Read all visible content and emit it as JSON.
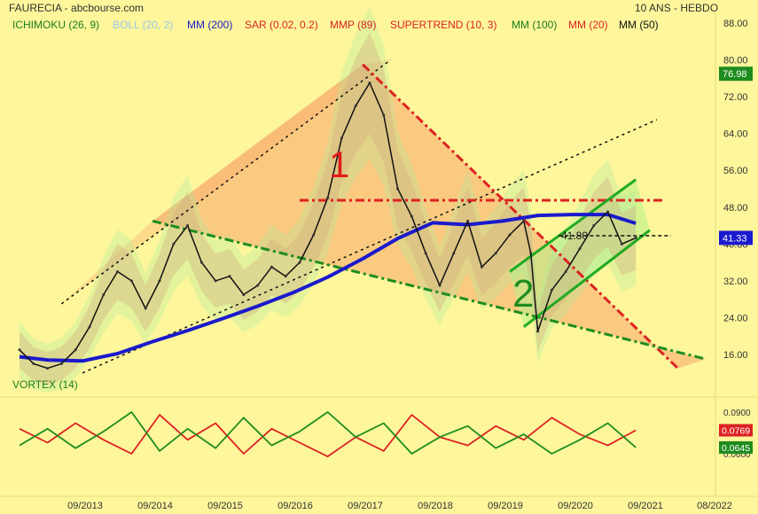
{
  "header": {
    "title": "FAURECIA - abcbourse.com",
    "period": "10 ANS - HEBDO"
  },
  "indicators": [
    {
      "label": "ICHIMOKU (26, 9)",
      "color": "#1e7a1e"
    },
    {
      "label": "BOLL (20, 2)",
      "color": "#9cc5ea"
    },
    {
      "label": "MM (200)",
      "color": "#1a1acc"
    },
    {
      "label": "SAR (0.02, 0.2)",
      "color": "#dd2222"
    },
    {
      "label": "MMP (89)",
      "color": "#dd2222"
    },
    {
      "label": "SUPERTREND (10, 3)",
      "color": "#dd2222"
    },
    {
      "label": "MM (100)",
      "color": "#1e7a1e"
    },
    {
      "label": "MM (20)",
      "color": "#dd2222"
    },
    {
      "label": "MM (50)",
      "color": "#111111"
    }
  ],
  "annotations": {
    "wave1": "1",
    "wave2": "2",
    "level": "41.80"
  },
  "chart_data": [
    {
      "type": "line",
      "title": "",
      "y_axis": {
        "ticks": [
          "88.00",
          "80.00",
          "72.00",
          "64.00",
          "56.00",
          "48.00",
          "40.00",
          "32.00",
          "24.00",
          "16.00"
        ],
        "tick_values": [
          88,
          80,
          72,
          64,
          56,
          48,
          40,
          32,
          24,
          16
        ],
        "range": [
          11,
          90
        ]
      },
      "x_axis": {
        "ticks": [
          "09/2013",
          "09/2014",
          "09/2015",
          "09/2016",
          "09/2017",
          "09/2018",
          "09/2019",
          "09/2020",
          "09/2021",
          "08/2022"
        ]
      },
      "price_badges": [
        {
          "label": "76.98",
          "value": 76.98,
          "color": "#1e8c1e"
        },
        {
          "label": "41.33",
          "value": 41.33,
          "color": "#1a1ad0"
        }
      ],
      "series": [
        {
          "name": "MM (200)",
          "color": "#1a1acc",
          "x": [
            2012.6,
            2013.0,
            2013.5,
            2014.0,
            2014.5,
            2015.0,
            2015.5,
            2016.0,
            2016.5,
            2017.0,
            2017.5,
            2018.0,
            2018.5,
            2019.0,
            2019.5,
            2020.0,
            2020.5,
            2021.0,
            2021.4
          ],
          "values": [
            15.5,
            14.8,
            14.6,
            16.2,
            18.8,
            21.2,
            23.8,
            26.5,
            29.4,
            32.8,
            36.8,
            41.2,
            44.6,
            44.2,
            45.0,
            46.2,
            46.4,
            46.4,
            44.5
          ]
        },
        {
          "name": "",
          "color": "#111111",
          "x": [
            2012.6,
            2012.8,
            2013.0,
            2013.2,
            2013.4,
            2013.6,
            2013.8,
            2014.0,
            2014.2,
            2014.4,
            2014.6,
            2014.8,
            2015.0,
            2015.2,
            2015.4,
            2015.6,
            2015.8,
            2016.0,
            2016.2,
            2016.4,
            2016.6,
            2016.8,
            2017.0,
            2017.2,
            2017.4,
            2017.6,
            2017.8,
            2018.0,
            2018.2,
            2018.4,
            2018.6,
            2018.8,
            2019.0,
            2019.2,
            2019.4,
            2019.6,
            2019.8,
            2019.9,
            2020.0,
            2020.2,
            2020.4,
            2020.6,
            2020.8,
            2021.0,
            2021.2,
            2021.4
          ],
          "values": [
            17.0,
            14.0,
            13.0,
            14.0,
            17.0,
            22.0,
            29.0,
            34.0,
            32.0,
            26.0,
            32.0,
            40.0,
            44.0,
            36.0,
            32.0,
            33.0,
            29.0,
            31.0,
            35.0,
            33.0,
            36.0,
            42.0,
            50.0,
            63.0,
            70.0,
            75.0,
            68.0,
            52.0,
            46.0,
            38.0,
            31.0,
            38.0,
            45.0,
            35.0,
            38.0,
            42.0,
            45.0,
            38.0,
            21.0,
            30.0,
            34.0,
            39.0,
            44.0,
            47.0,
            40.0,
            41.33
          ]
        }
      ],
      "annotation_lines": [
        {
          "name": "upper-trendline-1",
          "style": "dotted",
          "color": "#111111",
          "x": [
            2013.2,
            2017.9
          ],
          "values": [
            27,
            80
          ]
        },
        {
          "name": "lower-trendline-1",
          "style": "dotted",
          "color": "#111111",
          "x": [
            2013.5,
            2021.7
          ],
          "values": [
            12,
            67
          ]
        },
        {
          "name": "downtrend-line",
          "style": "dash-dot",
          "color": "#dd2222",
          "x": [
            2017.5,
            2022.0
          ],
          "values": [
            79,
            13
          ]
        },
        {
          "name": "resistance-line",
          "style": "dash-dot",
          "color": "#dd2222",
          "x": [
            2016.6,
            2021.8
          ],
          "values": [
            49.5,
            49.5
          ]
        },
        {
          "name": "support-line",
          "style": "dash-dot",
          "color": "#1e8c1e",
          "x": [
            2014.5,
            2022.4
          ],
          "values": [
            45,
            15
          ]
        },
        {
          "name": "channel-upper",
          "style": "solid",
          "color": "#22aa22",
          "x": [
            2019.6,
            2021.4
          ],
          "values": [
            34,
            54
          ]
        },
        {
          "name": "channel-lower",
          "style": "solid",
          "color": "#22aa22",
          "x": [
            2019.8,
            2021.6
          ],
          "values": [
            22,
            43
          ]
        },
        {
          "name": "level-41.80",
          "style": "dashed",
          "color": "#111111",
          "x": [
            2020.3,
            2021.9
          ],
          "values": [
            41.8,
            41.8
          ]
        }
      ]
    },
    {
      "type": "line",
      "title": "VORTEX (14)",
      "y_axis": {
        "ticks": [
          "0.0900",
          "0.0600"
        ],
        "tick_values": [
          0.09,
          0.06
        ]
      },
      "price_badges": [
        {
          "label": "0.0769",
          "value": 0.0769,
          "color": "#dd2222"
        },
        {
          "label": "0.0645",
          "value": 0.0645,
          "color": "#1e8c1e"
        }
      ],
      "series": [
        {
          "name": "",
          "color": "#dd2222",
          "x": [
            2012.6,
            2013.0,
            2013.4,
            2013.8,
            2014.2,
            2014.6,
            2015.0,
            2015.4,
            2015.8,
            2016.2,
            2016.6,
            2017.0,
            2017.4,
            2017.8,
            2018.2,
            2018.6,
            2019.0,
            2019.4,
            2019.8,
            2020.2,
            2020.6,
            2021.0,
            2021.4
          ],
          "values": [
            0.078,
            0.068,
            0.082,
            0.07,
            0.06,
            0.088,
            0.07,
            0.082,
            0.06,
            0.078,
            0.068,
            0.058,
            0.072,
            0.062,
            0.088,
            0.072,
            0.066,
            0.08,
            0.07,
            0.086,
            0.074,
            0.066,
            0.0769
          ]
        },
        {
          "name": "",
          "color": "#1e8c1e",
          "x": [
            2012.6,
            2013.0,
            2013.4,
            2013.8,
            2014.2,
            2014.6,
            2015.0,
            2015.4,
            2015.8,
            2016.2,
            2016.6,
            2017.0,
            2017.4,
            2017.8,
            2018.2,
            2018.6,
            2019.0,
            2019.4,
            2019.8,
            2020.2,
            2020.6,
            2021.0,
            2021.4
          ],
          "values": [
            0.066,
            0.078,
            0.064,
            0.076,
            0.09,
            0.062,
            0.078,
            0.064,
            0.086,
            0.066,
            0.076,
            0.09,
            0.072,
            0.082,
            0.06,
            0.072,
            0.08,
            0.064,
            0.074,
            0.06,
            0.07,
            0.082,
            0.0645
          ]
        }
      ]
    }
  ]
}
